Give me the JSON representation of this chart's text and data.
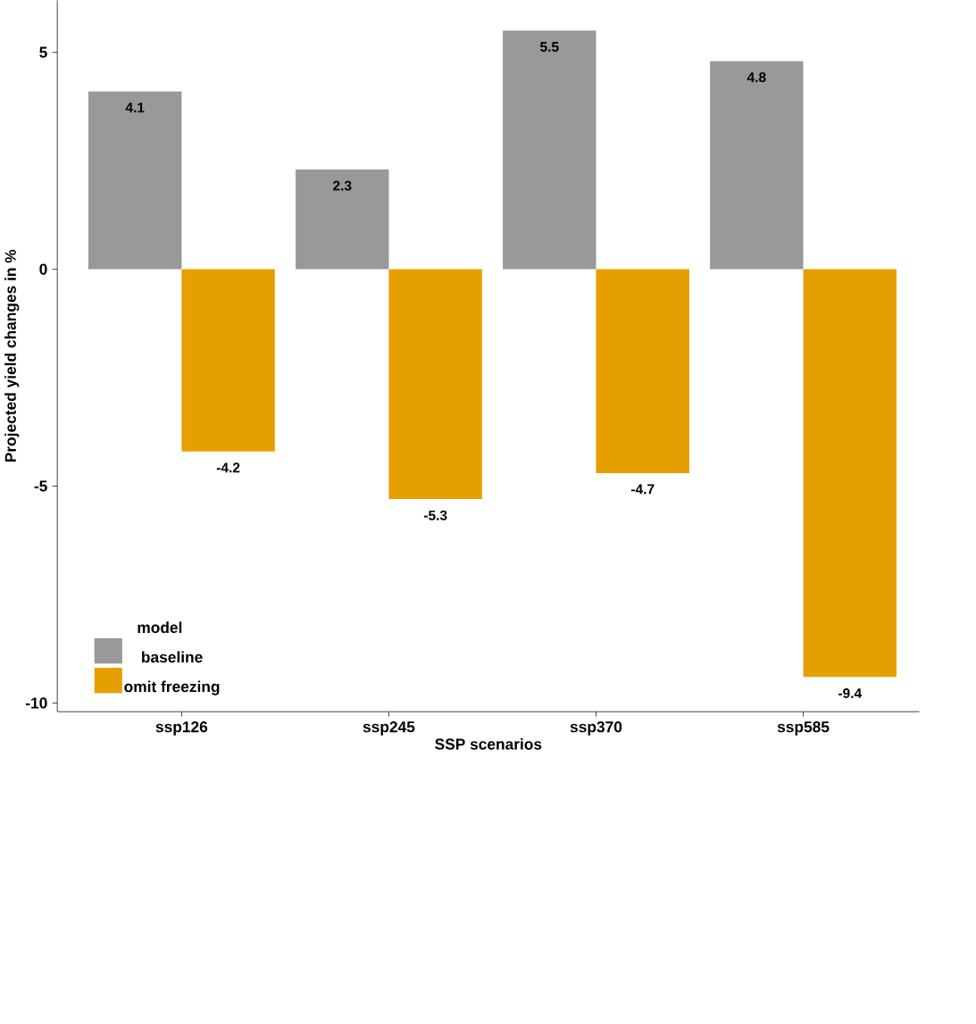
{
  "chart_data": {
    "type": "bar",
    "xlabel": "SSP scenarios",
    "ylabel": "Projected yield changes in %",
    "legend_title": "model",
    "categories": [
      "ssp126",
      "ssp245",
      "ssp370",
      "ssp585"
    ],
    "series": [
      {
        "name": "baseline",
        "color": "#999999",
        "values": [
          4.1,
          2.3,
          5.5,
          4.8
        ]
      },
      {
        "name": "omit freezing",
        "color": "#e69f00",
        "values": [
          -4.2,
          -5.3,
          -4.7,
          -9.4
        ]
      }
    ],
    "ylim": [
      -10.2,
      6.2
    ],
    "yticks": [
      -10,
      -5,
      0,
      5
    ],
    "grid": false,
    "legend": "bottom left",
    "data_labels": true
  }
}
